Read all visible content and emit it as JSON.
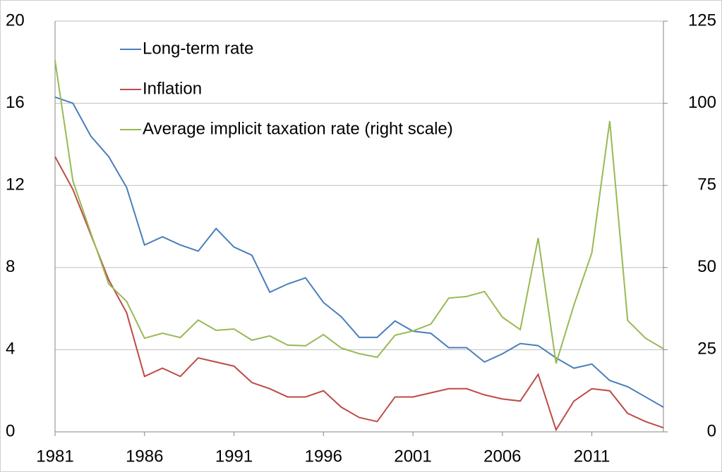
{
  "chart_data": {
    "type": "line",
    "x": [
      1981,
      1982,
      1983,
      1984,
      1985,
      1986,
      1987,
      1988,
      1989,
      1990,
      1991,
      1992,
      1993,
      1994,
      1995,
      1996,
      1997,
      1998,
      1999,
      2000,
      2001,
      2002,
      2003,
      2004,
      2005,
      2006,
      2007,
      2008,
      2009,
      2010,
      2011,
      2012,
      2013,
      2014,
      2015
    ],
    "xlim": [
      1981,
      2015
    ],
    "xticks": [
      1981,
      1986,
      1991,
      1996,
      2001,
      2006,
      2011
    ],
    "ylim": [
      0,
      20
    ],
    "yticks": [
      0,
      4,
      8,
      12,
      16,
      20
    ],
    "y2lim": [
      0,
      125
    ],
    "y2ticks": [
      0,
      25,
      50,
      75,
      100,
      125
    ],
    "grid": true,
    "legend": "top-left",
    "series": [
      {
        "name": "Long-term rate",
        "color": "#4a7ebb",
        "values": [
          16.3,
          16.0,
          14.4,
          13.4,
          11.9,
          9.1,
          9.5,
          9.1,
          8.8,
          9.9,
          9.0,
          8.6,
          6.8,
          7.2,
          7.5,
          6.3,
          5.6,
          4.6,
          4.6,
          5.4,
          4.9,
          4.8,
          4.1,
          4.1,
          3.4,
          3.8,
          4.3,
          4.2,
          3.6,
          3.1,
          3.3,
          2.5,
          2.2,
          1.7,
          1.2
        ]
      },
      {
        "name": "Inflation",
        "color": "#be4b48",
        "values": [
          13.4,
          11.8,
          9.6,
          7.4,
          5.8,
          2.7,
          3.1,
          2.7,
          3.6,
          3.4,
          3.2,
          2.4,
          2.1,
          1.7,
          1.7,
          2.0,
          1.2,
          0.7,
          0.5,
          1.7,
          1.7,
          1.9,
          2.1,
          2.1,
          1.8,
          1.6,
          1.5,
          2.8,
          0.1,
          1.5,
          2.1,
          2.0,
          0.9,
          0.5,
          0.2
        ]
      },
      {
        "name": "Average implicit taxation rate (right scale)",
        "color": "#98b954",
        "axis": "y2",
        "values": [
          113,
          76.3,
          60.5,
          45,
          39.7,
          28.5,
          30,
          28.7,
          34,
          30.9,
          31.3,
          27.9,
          29.2,
          26.4,
          26.2,
          29.6,
          25.5,
          23.8,
          22.7,
          29.4,
          30.7,
          32.8,
          40.7,
          41.2,
          42.7,
          34.9,
          31.1,
          59,
          20.8,
          38.6,
          54.5,
          94.6,
          33.9,
          28.5,
          25.3
        ]
      }
    ]
  }
}
